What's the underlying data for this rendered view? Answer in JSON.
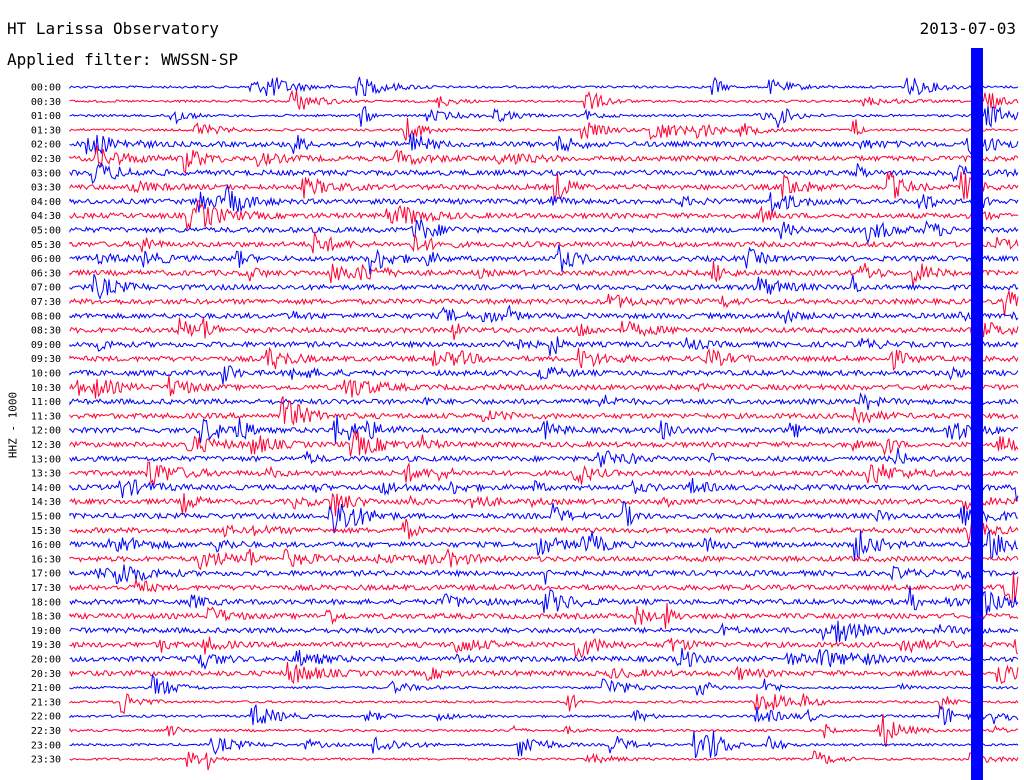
{
  "header": {
    "station_title": "HT Larissa Observatory",
    "date": "2013-07-03",
    "filter_text": "Applied filter: WWSSN-SP"
  },
  "chart_data": {
    "type": "line",
    "title": "HT Larissa Observatory",
    "xlabel": "",
    "ylabel": "HHZ - 1000",
    "y_tick_labels": [
      "00:00",
      "00:30",
      "01:00",
      "01:30",
      "02:00",
      "02:30",
      "03:00",
      "03:30",
      "04:00",
      "04:30",
      "05:00",
      "05:30",
      "06:00",
      "06:30",
      "07:00",
      "07:30",
      "08:00",
      "08:30",
      "09:00",
      "09:30",
      "10:00",
      "10:30",
      "11:00",
      "11:30",
      "12:00",
      "12:30",
      "13:00",
      "13:30",
      "14:00",
      "14:30",
      "15:00",
      "15:30",
      "16:00",
      "16:30",
      "17:00",
      "17:30",
      "18:00",
      "18:30",
      "19:00",
      "19:30",
      "20:00",
      "20:30",
      "21:00",
      "21:30",
      "22:00",
      "22:30",
      "23:00",
      "23:30"
    ],
    "trace_colors": [
      "#0000ff",
      "#ff0033"
    ],
    "grid": false,
    "legend": "none"
  }
}
